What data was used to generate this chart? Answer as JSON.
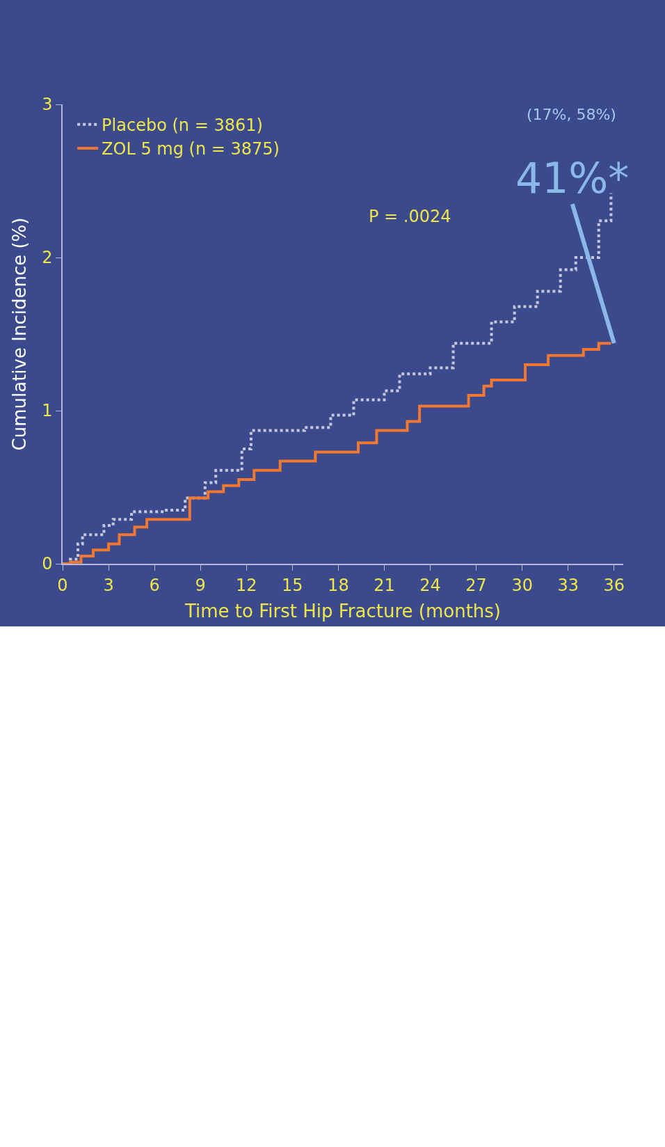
{
  "chart_data": {
    "type": "step",
    "xlabel": "Time to First Hip Fracture (months)",
    "ylabel": "Cumulative Incidence (%)",
    "series": [
      {
        "name": "Placebo (n = 3861)",
        "color": "#c8c8dc",
        "line_style": "dotted",
        "x": [
          0,
          0.3,
          0.5,
          1,
          1.3,
          2.7,
          3.3,
          4.5,
          6.5,
          8,
          9.3,
          10,
          11.7,
          12.3,
          15.8,
          17.5,
          19,
          21,
          22,
          24,
          25.5,
          28,
          29.5,
          31,
          32.5,
          33.5,
          35,
          35.8
        ],
        "values": [
          0,
          0,
          0.03,
          0.13,
          0.19,
          0.25,
          0.29,
          0.34,
          0.35,
          0.43,
          0.53,
          0.61,
          0.75,
          0.87,
          0.89,
          0.97,
          1.07,
          1.13,
          1.24,
          1.28,
          1.44,
          1.58,
          1.68,
          1.78,
          1.92,
          2.0,
          2.24,
          2.42
        ]
      },
      {
        "name": "ZOL 5 mg (n = 3875)",
        "color": "#f07830",
        "line_style": "solid",
        "x": [
          0,
          0.5,
          1.2,
          2,
          3,
          3.7,
          4.7,
          5.5,
          8.3,
          9.5,
          10.5,
          11.5,
          12.5,
          14.2,
          16.5,
          19.3,
          20.5,
          22.5,
          23.3,
          26.5,
          27.5,
          28,
          30.2,
          31.7,
          34,
          35,
          35.8
        ],
        "values": [
          0,
          0.01,
          0.05,
          0.09,
          0.13,
          0.19,
          0.24,
          0.29,
          0.43,
          0.47,
          0.51,
          0.55,
          0.61,
          0.67,
          0.73,
          0.79,
          0.87,
          0.93,
          1.03,
          1.1,
          1.16,
          1.2,
          1.3,
          1.36,
          1.4,
          1.44,
          1.44
        ]
      }
    ],
    "xlim": [
      0,
      36.6
    ],
    "xticks": [
      0,
      3,
      6,
      9,
      12,
      15,
      18,
      21,
      24,
      27,
      30,
      33,
      36
    ],
    "ylim": [
      0,
      3
    ],
    "yticks": [
      0,
      1,
      2,
      3
    ],
    "grid": false,
    "legend": "top left",
    "annotations": [
      {
        "text": "41%*",
        "x": 36,
        "y": 1.44
      },
      "(17%, 58%)",
      "P = .0024"
    ]
  }
}
